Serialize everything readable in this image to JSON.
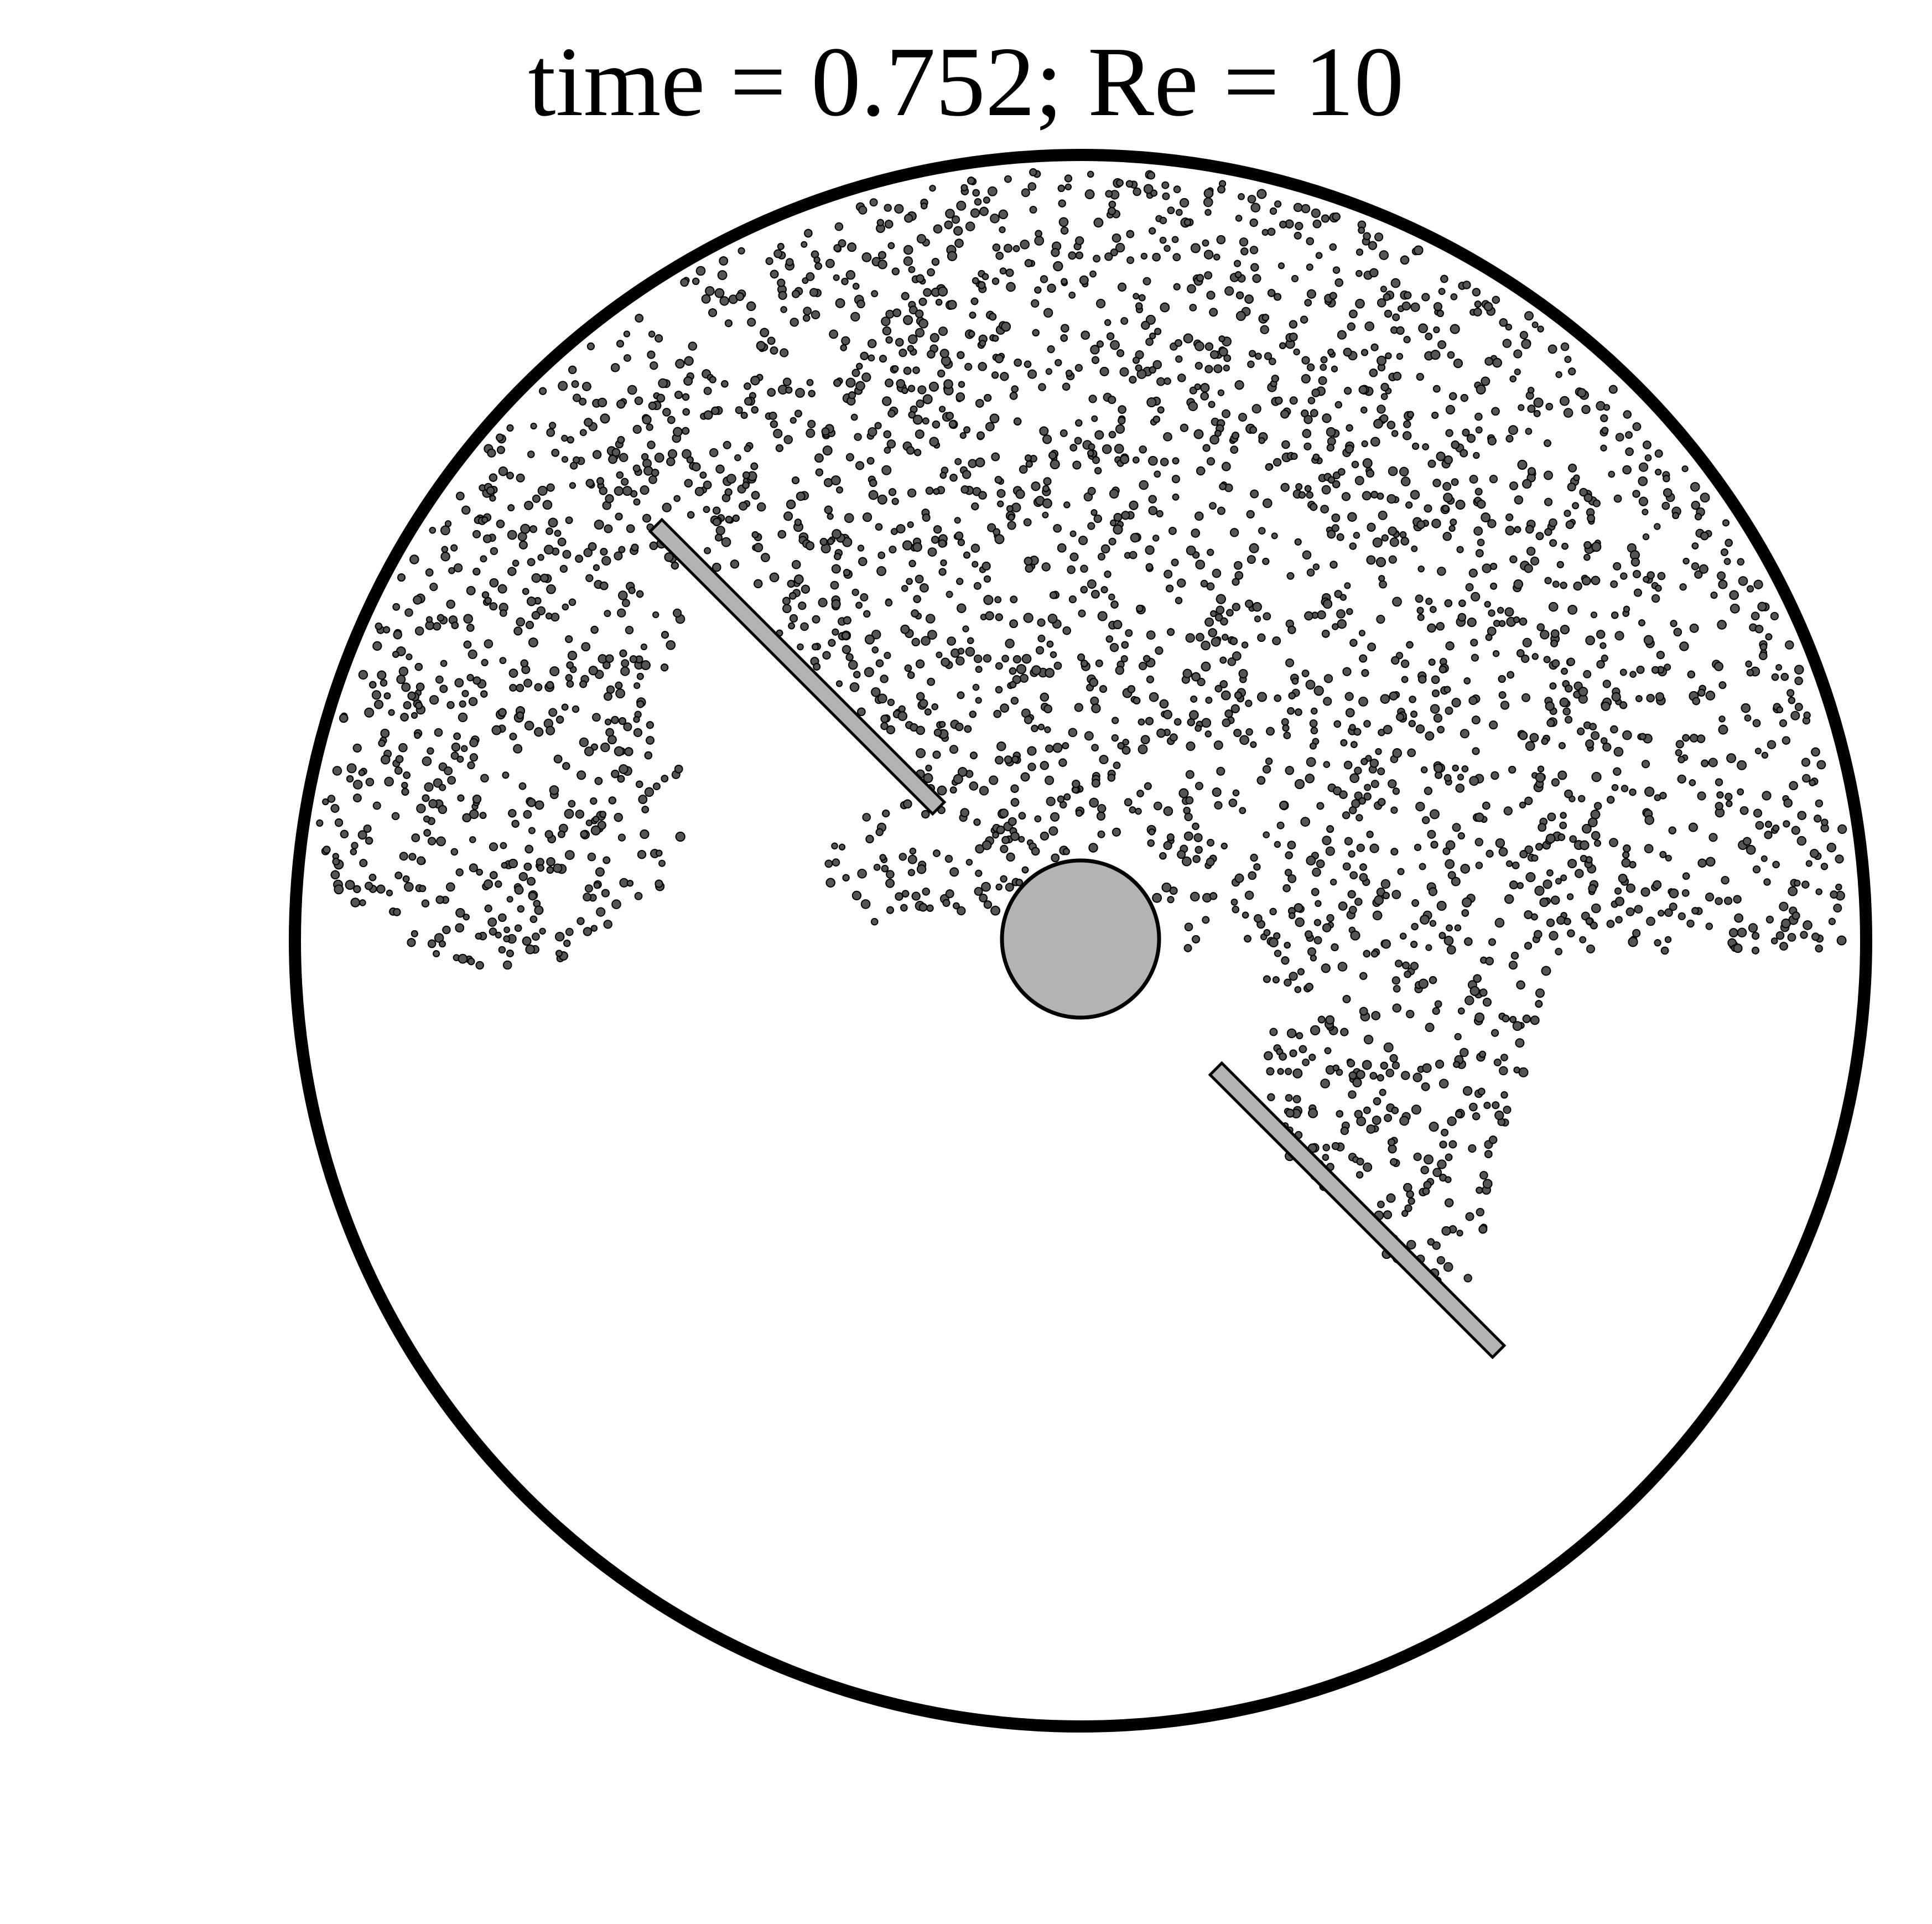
{
  "figure": {
    "title": "time = 0.752; Re = 10"
  },
  "colors": {
    "outline": "#000000",
    "solid_fill": "#b3b3b3",
    "particle_fill": "#555555",
    "background": "#ffffff"
  }
}
